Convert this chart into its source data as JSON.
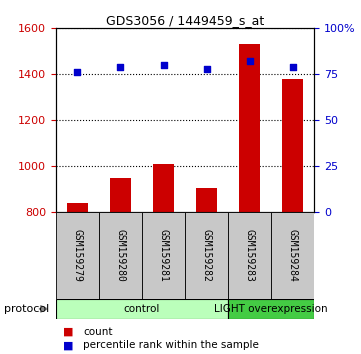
{
  "title": "GDS3056 / 1449459_s_at",
  "samples": [
    "GSM159279",
    "GSM159280",
    "GSM159281",
    "GSM159282",
    "GSM159283",
    "GSM159284"
  ],
  "counts": [
    840,
    950,
    1010,
    905,
    1530,
    1380
  ],
  "percentiles": [
    76,
    79,
    80,
    78,
    82,
    79
  ],
  "ylim_left": [
    800,
    1600
  ],
  "ylim_right": [
    0,
    100
  ],
  "yticks_left": [
    800,
    1000,
    1200,
    1400,
    1600
  ],
  "yticks_right": [
    0,
    25,
    50,
    75,
    100
  ],
  "ytick_labels_right": [
    "0",
    "25",
    "50",
    "75",
    "100%"
  ],
  "groups": [
    {
      "label": "control",
      "start": 0,
      "end": 4,
      "color": "#bbffbb"
    },
    {
      "label": "LIGHT overexpression",
      "start": 4,
      "end": 6,
      "color": "#44cc44"
    }
  ],
  "bar_color": "#cc0000",
  "dot_color": "#0000cc",
  "bar_width": 0.5,
  "bg_color": "#c8c8c8",
  "left_tick_color": "#cc0000",
  "right_tick_color": "#0000cc",
  "protocol_label": "protocol",
  "legend_count_label": "count",
  "legend_percentile_label": "percentile rank within the sample",
  "gridline_ticks": [
    1000,
    1200,
    1400
  ],
  "fig_width": 3.61,
  "fig_height": 3.54
}
